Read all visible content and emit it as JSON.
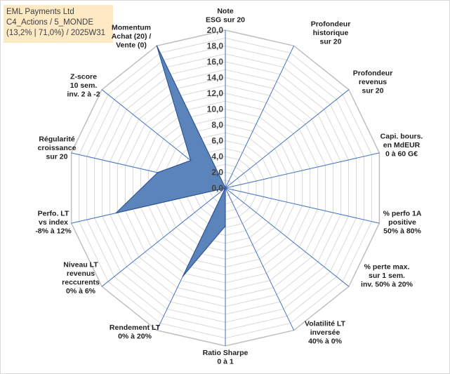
{
  "title_box": {
    "line1": "EML Payments Ltd",
    "line2": "C4_Actions / 5_MONDE",
    "line3": "(13,2% | 71,0%) / 2025W31"
  },
  "chart_data": {
    "type": "radar",
    "rmax": 20,
    "grid_step": 1,
    "ticks": [
      "0,0",
      "2,0",
      "4,0",
      "6,0",
      "8,0",
      "10,0",
      "12,0",
      "14,0",
      "16,0",
      "18,0",
      "20,0"
    ],
    "tick_values": [
      0,
      2,
      4,
      6,
      8,
      10,
      12,
      14,
      16,
      18,
      20
    ],
    "axes": [
      {
        "label": [
          "Note",
          "ESG sur 20"
        ],
        "value": 0
      },
      {
        "label": [
          "Profondeur",
          "historique",
          "sur 20"
        ],
        "value": 0
      },
      {
        "label": [
          "Profondeur",
          "revenus",
          "sur 20"
        ],
        "value": 0
      },
      {
        "label": [
          "Capi. bours.",
          "en MdEUR",
          "0 à 60 G€"
        ],
        "value": 0
      },
      {
        "label": [
          "% perfo 1A",
          "positive",
          "50% à 80%"
        ],
        "value": 0
      },
      {
        "label": [
          "% perte max.",
          "sur 1 sem.",
          "inv. 50% à 20%"
        ],
        "value": 0
      },
      {
        "label": [
          "Volatilité LT",
          "inversée",
          "40% à 0%"
        ],
        "value": 0
      },
      {
        "label": [
          "Ratio Sharpe",
          "0 à 1"
        ],
        "value": 4.8
      },
      {
        "label": [
          "Rendement LT",
          "0% à 20%"
        ],
        "value": 12.4
      },
      {
        "label": [
          "Niveau LT",
          "revenus",
          "reccurents",
          "0% à 6%"
        ],
        "value": 0
      },
      {
        "label": [
          "Perfo. LT",
          "vs index",
          "-8% à 12%"
        ],
        "value": 14.2
      },
      {
        "label": [
          "Régularité",
          "croissance",
          "sur 20"
        ],
        "value": 8.8
      },
      {
        "label": [
          "Z-score",
          "10 sem.",
          "inv. 2 à -2"
        ],
        "value": 5.6
      },
      {
        "label": [
          "Momentum",
          "Achat (20) /",
          "Vente (0)"
        ],
        "value": 20
      }
    ],
    "series": [
      {
        "values": [
          0,
          0,
          0,
          0,
          0,
          0,
          0,
          4.8,
          12.4,
          0,
          14.2,
          8.8,
          5.6,
          20
        ]
      }
    ],
    "colors": {
      "fill": "#5b84bb",
      "stroke": "#2f5597",
      "spoke": "#4472c4",
      "grid": "#d9d9d9",
      "grid_major": "#bfbfbf"
    }
  }
}
